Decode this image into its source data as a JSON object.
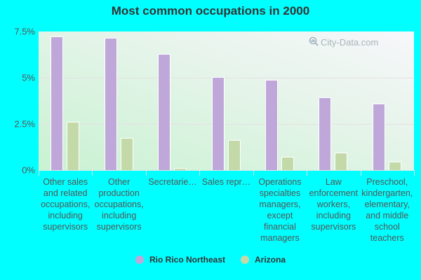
{
  "title": "Most common occupations in 2000",
  "watermark": "City-Data.com",
  "colors": {
    "series1": "#bfa8d9",
    "series2": "#c4d9a8",
    "background": "#00ffff"
  },
  "yaxis": {
    "ticks": [
      "7.5%",
      "5%",
      "2.5%",
      "0%"
    ]
  },
  "legend": [
    {
      "label": "Rio Rico Northeast",
      "color": "#bfa8d9"
    },
    {
      "label": "Arizona",
      "color": "#c4d9a8"
    }
  ],
  "xlabels": [
    "Other sales and related occupations, including supervisors",
    "Other production occupations, including supervisors",
    "Secretarie…",
    "Sales repr…",
    "Operations specialties managers, except financial managers",
    "Law enforcement workers, including supervisors",
    "Preschool, kindergarten, elementary, and middle school teachers"
  ],
  "chart_data": {
    "type": "bar",
    "title": "Most common occupations in 2000",
    "xlabel": "",
    "ylabel": "",
    "ylim": [
      0,
      7.5
    ],
    "yticks": [
      "0%",
      "2.5%",
      "5%",
      "7.5%"
    ],
    "grid": true,
    "legend_position": "bottom",
    "categories": [
      "Other sales and related occupations, including supervisors",
      "Other production occupations, including supervisors",
      "Secretaries and administrative assistants",
      "Sales representatives",
      "Operations specialties managers, except financial managers",
      "Law enforcement workers, including supervisors",
      "Preschool, kindergarten, elementary, and middle school teachers"
    ],
    "series": [
      {
        "name": "Rio Rico Northeast",
        "values": [
          7.25,
          7.15,
          6.3,
          5.05,
          4.9,
          3.95,
          3.6
        ]
      },
      {
        "name": "Arizona",
        "values": [
          2.6,
          1.75,
          0.1,
          1.63,
          0.72,
          0.94,
          0.46
        ]
      }
    ]
  }
}
